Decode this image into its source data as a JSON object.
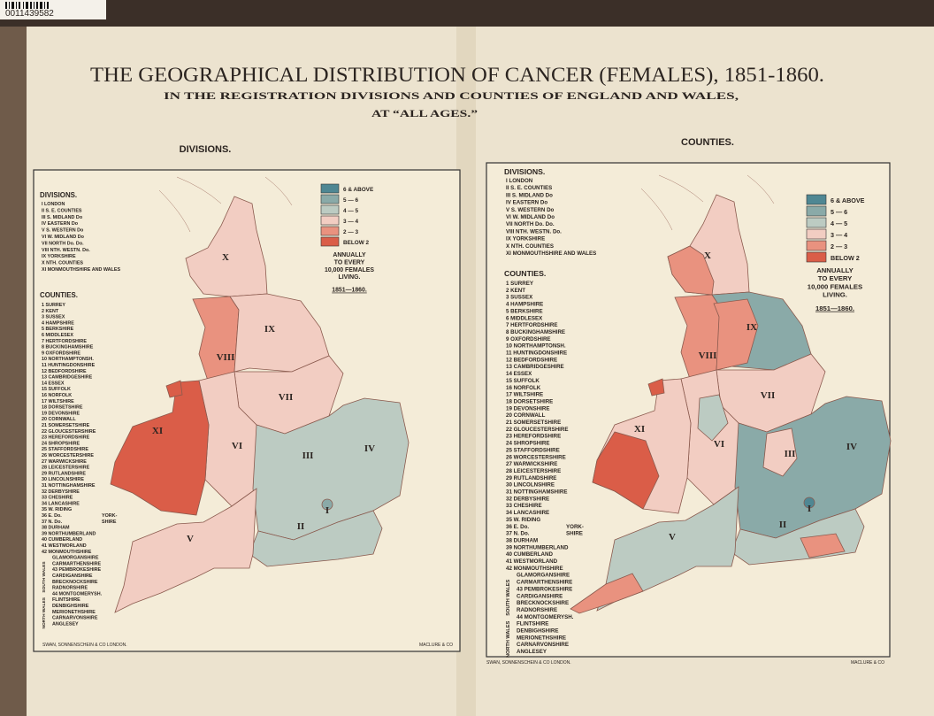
{
  "catalog_id": "0011439582",
  "title": "THE GEOGRAPHICAL DISTRIBUTION OF CANCER (FEMALES), 1851-1860.",
  "subtitle": "IN THE REGISTRATION DIVISIONS AND COUNTIES OF ENGLAND AND WALES,",
  "subtitle2": "AT “ALL AGES.”",
  "divisions_title": "DIVISIONS.",
  "divisions": [
    "I LONDON",
    "II S. E. COUNTIES",
    "III S. MIDLAND Do",
    "IV EASTERN Do",
    "V S. WESTERN Do",
    "VI W. MIDLAND Do",
    "VII NORTH Do. Do.",
    "VIII NTH. WESTN. Do.",
    "IX YORKSHIRE",
    "X NTH. COUNTIES",
    "XI MONMOUTHSHIRE AND WALES"
  ],
  "counties_title": "COUNTIES.",
  "counties": [
    "1 SURREY",
    "2 KENT",
    "3 SUSSEX",
    "4 HAMPSHIRE",
    "5 BERKSHIRE",
    "6 MIDDLESEX",
    "7 HERTFORDSHIRE",
    "8 BUCKINGHAMSHIRE",
    "9 OXFORDSHIRE",
    "10 NORTHAMPTONSH.",
    "11 HUNTINGDONSHIRE",
    "12 BEDFORDSHIRE",
    "13 CAMBRIDGESHIRE",
    "14 ESSEX",
    "15 SUFFOLK",
    "16 NORFOLK",
    "17 WILTSHIRE",
    "18 DORSETSHIRE",
    "19 DEVONSHIRE",
    "20 CORNWALL",
    "21 SOMERSETSHIRE",
    "22 GLOUCESTERSHIRE",
    "23 HEREFORDSHIRE",
    "24 SHROPSHIRE",
    "25 STAFFORDSHIRE",
    "26 WORCESTERSHIRE",
    "27 WARWICKSHIRE",
    "28 LEICESTERSHIRE",
    "29 RUTLANDSHIRE",
    "30 LINCOLNSHIRE",
    "31 NOTTINGHAMSHIRE",
    "32 DERBYSHIRE",
    "33 CHESHIRE",
    "34 LANCASHIRE",
    "35 W. RIDING",
    "36 E. Do.",
    "37 N. Do.",
    "38 DURHAM",
    "39 NORTHUMBERLAND",
    "40 CUMBERLAND",
    "41 WESTMORLAND",
    "42 MONMOUTHSHIRE",
    "GLAMORGANSHIRE",
    "CARMARTHENSHIRE",
    "43 PEMBROKESHIRE",
    "CARDIGANSHIRE",
    "BRECKNOCKSHIRE",
    "RADNORSHIRE",
    "44 MONTGOMERYSH.",
    "FLINTSHIRE",
    "DENBIGHSHIRE",
    "MERIONETHSHIRE",
    "CARNARVONSHIRE",
    "ANGLESEY"
  ],
  "yorkshire_bracket": [
    "YORK-",
    "SHIRE"
  ],
  "south_wales": "SOUTH WALES",
  "north_wales": "NORTH WALES",
  "map_labels": [
    "I",
    "II",
    "III",
    "IV",
    "V",
    "VI",
    "VII",
    "VIII",
    "IX",
    "X",
    "XI"
  ],
  "legend": {
    "items": [
      {
        "label": "6 & ABOVE",
        "color": "#4f8793"
      },
      {
        "label": "5 — 6",
        "color": "#8aaaa8"
      },
      {
        "label": "4 — 5",
        "color": "#bccbc2"
      },
      {
        "label": "3 — 4",
        "color": "#f2cdc2"
      },
      {
        "label": "2 — 3",
        "color": "#e9927f"
      },
      {
        "label": "BELOW 2",
        "color": "#da5d48"
      }
    ],
    "note": [
      "ANNUALLY",
      "TO EVERY",
      "10,000 FEMALES",
      "LIVING."
    ],
    "period": "1851—1860."
  },
  "maps": [
    {
      "heading": "DIVISIONS.",
      "publisher": "SWAN, SONNENSCHEIN & CO LONDON.",
      "printer": "MACLURE & CO"
    },
    {
      "heading": "COUNTIES.",
      "publisher": "SWAN, SONNENSCHEIN & CO LONDON.",
      "printer": "MACLURE & CO"
    }
  ]
}
